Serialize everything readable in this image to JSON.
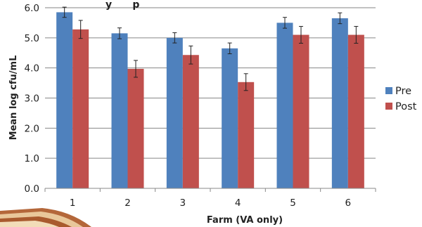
{
  "chart_data": {
    "type": "bar",
    "title_fragment": "y      p",
    "xlabel": "Farm (VA only)",
    "ylabel": "Mean log cfu/mL",
    "categories": [
      "1",
      "2",
      "3",
      "4",
      "5",
      "6"
    ],
    "ylim": [
      0,
      6
    ],
    "yticks": [
      "0.0",
      "1.0",
      "2.0",
      "3.0",
      "4.0",
      "5.0",
      "6.0"
    ],
    "grid": true,
    "legend_position": "right",
    "series": [
      {
        "name": "Pre",
        "color": "#4f81bd",
        "values": [
          5.85,
          5.15,
          5.0,
          4.65,
          5.5,
          5.65
        ],
        "errors": [
          0.17,
          0.18,
          0.17,
          0.18,
          0.18,
          0.18
        ]
      },
      {
        "name": "Post",
        "color": "#c0504d",
        "values": [
          5.28,
          3.97,
          4.43,
          3.53,
          5.1,
          5.1
        ],
        "errors": [
          0.3,
          0.28,
          0.3,
          0.28,
          0.28,
          0.28
        ]
      }
    ]
  },
  "decoration": {
    "corner_graphic": "book-corner-graphic"
  }
}
